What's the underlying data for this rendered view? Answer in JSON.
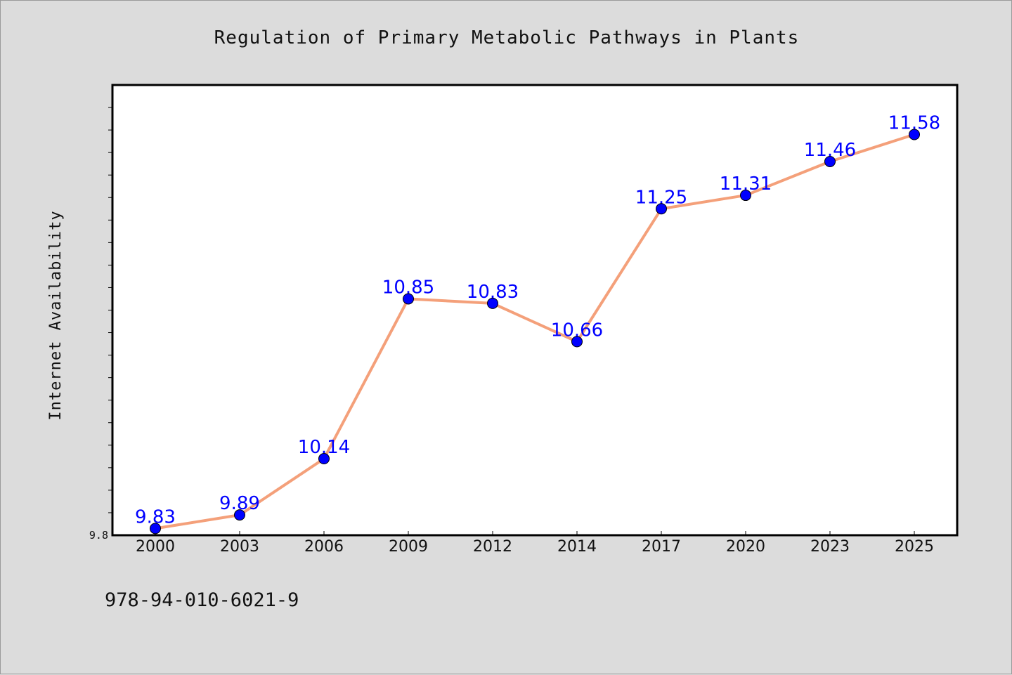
{
  "chart_data": {
    "type": "line",
    "title": "Regulation of Primary Metabolic Pathways in Plants",
    "xlabel": "",
    "ylabel": "Internet Availability",
    "categories": [
      "2000",
      "2003",
      "2006",
      "2009",
      "2012",
      "2014",
      "2017",
      "2020",
      "2023",
      "2025"
    ],
    "series": [
      {
        "values": [
          9.83,
          9.89,
          10.14,
          10.85,
          10.83,
          10.66,
          11.25,
          11.31,
          11.46,
          11.58
        ],
        "data_labels": [
          "9.83",
          "9.89",
          "10.14",
          "10.85",
          "10.83",
          "10.66",
          "11.25",
          "11.31",
          "11.46",
          "11.58"
        ],
        "line_color": "#f4a07a",
        "marker_color": "#0000ff"
      }
    ],
    "ylim": [
      9.8,
      11.8
    ],
    "ytick_labels": [
      "9.8"
    ],
    "grid": false,
    "legend": "none"
  },
  "footer": {
    "code": "978-94-010-6021-9"
  }
}
